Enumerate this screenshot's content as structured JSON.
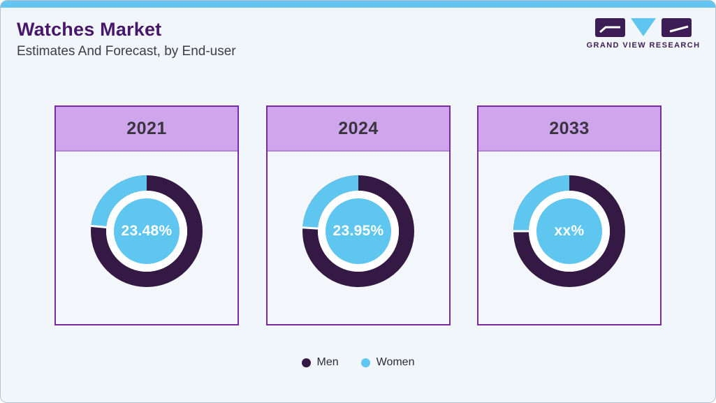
{
  "frame": {
    "background": "#f1f6fa",
    "accent_bar_color": "#63c5f0",
    "border_color": "#b7c3cc"
  },
  "header": {
    "title": "Watches Market",
    "subtitle": "Estimates And Forecast, by End-user",
    "title_color": "#471769"
  },
  "logo": {
    "caption": "GRAND VIEW RESEARCH",
    "purple": "#3d1d55",
    "blue": "#5ec6ef"
  },
  "chart_data": {
    "type": "pie",
    "variant": "donut-small-multiples",
    "title": "Watches Market Estimates And Forecast, by End-user",
    "unit": "percent share of end-user segment",
    "legend": [
      {
        "name": "Men",
        "color": "#331943"
      },
      {
        "name": "Women",
        "color": "#5ec6ef"
      }
    ],
    "colors": {
      "men": "#331943",
      "women": "#5ec6ef",
      "card_header": "#cfa6ec",
      "card_border": "#7b2aa5",
      "center_circle": "#5ec6ef"
    },
    "donuts": [
      {
        "year": "2021",
        "center_label": "23.48%",
        "women_pct": 23.48,
        "men_pct": 76.52
      },
      {
        "year": "2024",
        "center_label": "23.95%",
        "women_pct": 23.95,
        "men_pct": 76.05
      },
      {
        "year": "2033",
        "center_label": "xx%",
        "women_pct": null,
        "men_pct": null,
        "women_pct_visual_estimate": 25
      }
    ],
    "notes": "Women share shown as blue segment starting at 12 o'clock sweeping counterclockwise; 2033 value masked as xx%"
  }
}
